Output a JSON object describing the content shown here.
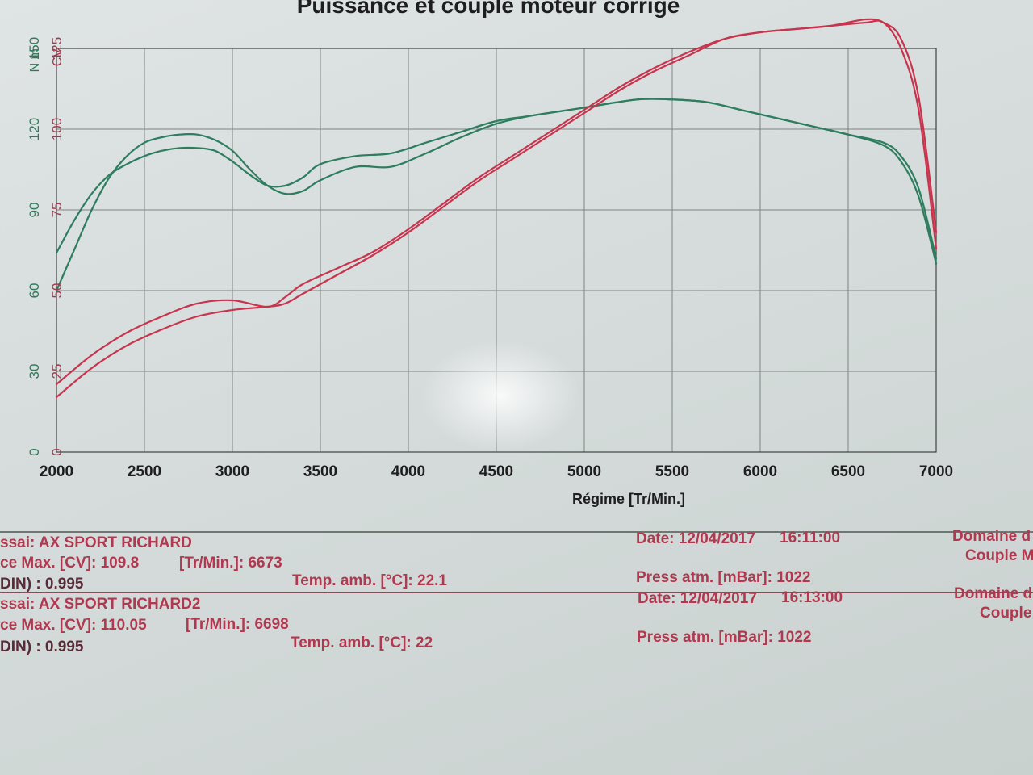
{
  "chart_data": {
    "type": "line",
    "title": "Puissance et couple moteur corrige",
    "xlabel": "Régime [Tr/Min.]",
    "x_ticks": [
      "2000",
      "2500",
      "3000",
      "3500",
      "4000",
      "4500",
      "5000",
      "5500",
      "6000",
      "6500",
      "7000"
    ],
    "xlim": [
      2000,
      7000
    ],
    "y_left_unit": "N m",
    "y_left_ticks": [
      "0",
      "30",
      "60",
      "90",
      "120",
      "150"
    ],
    "y_left_lim": [
      0,
      150
    ],
    "y_right_unit": "CV",
    "y_right_ticks": [
      "0",
      "25",
      "50",
      "75",
      "100",
      "125"
    ],
    "y_right_lim": [
      0,
      125
    ],
    "grid": true,
    "series": [
      {
        "axis": "left",
        "color": "#2e7d5e",
        "x": [
          2000,
          2100,
          2200,
          2300,
          2400,
          2500,
          2600,
          2700,
          2800,
          2900,
          3000,
          3100,
          3200,
          3300,
          3400,
          3500,
          3700,
          3900,
          4100,
          4300,
          4500,
          4700,
          5000,
          5300,
          5500,
          5700,
          5900,
          6100,
          6300,
          6500,
          6700,
          6800,
          6900,
          7000
        ],
        "values": [
          60,
          75,
          90,
          102,
          110,
          115,
          117,
          118,
          118,
          116,
          112,
          105,
          99,
          96,
          97,
          101,
          106,
          106,
          111,
          117,
          122,
          125,
          128,
          131,
          131,
          130,
          127,
          124,
          121,
          118,
          114,
          108,
          95,
          70
        ]
      },
      {
        "axis": "left",
        "color": "#2e7d5e",
        "x": [
          2000,
          2100,
          2200,
          2300,
          2400,
          2500,
          2600,
          2700,
          2800,
          2900,
          3000,
          3100,
          3200,
          3300,
          3400,
          3500,
          3700,
          3900,
          4100,
          4300,
          4500,
          4700,
          5000,
          5300,
          5500,
          5700,
          5900,
          6100,
          6300,
          6500,
          6700,
          6800,
          6900,
          7000
        ],
        "values": [
          74,
          86,
          96,
          103,
          107,
          110,
          112,
          113,
          113,
          112,
          108,
          103,
          99,
          99,
          102,
          107,
          110,
          111,
          115,
          119,
          123,
          125,
          128,
          131,
          131,
          130,
          127,
          124,
          121,
          118,
          115,
          110,
          98,
          72
        ]
      },
      {
        "axis": "right",
        "color": "#c8344e",
        "x": [
          2000,
          2200,
          2400,
          2600,
          2800,
          3000,
          3200,
          3300,
          3400,
          3600,
          3800,
          4000,
          4200,
          4400,
          4600,
          4800,
          5000,
          5200,
          5400,
          5600,
          5800,
          6000,
          6200,
          6400,
          6600,
          6700,
          6800,
          6900,
          7000
        ],
        "values": [
          17,
          26,
          33,
          38,
          42,
          44,
          45,
          46,
          49,
          55,
          61,
          68,
          76,
          84,
          91,
          98,
          105,
          112,
          118,
          123,
          128,
          130,
          131,
          132,
          134,
          133,
          128,
          110,
          68
        ]
      },
      {
        "axis": "right",
        "color": "#c8344e",
        "x": [
          2000,
          2200,
          2400,
          2600,
          2800,
          3000,
          3200,
          3300,
          3400,
          3600,
          3800,
          4000,
          4200,
          4400,
          4600,
          4800,
          5000,
          5200,
          5400,
          5600,
          5800,
          6000,
          6200,
          6400,
          6600,
          6700,
          6800,
          6900,
          7000
        ],
        "values": [
          21,
          30,
          37,
          42,
          46,
          47,
          45,
          48,
          52,
          57,
          62,
          69,
          77,
          85,
          92,
          99,
          106,
          113,
          119,
          124,
          128,
          130,
          131,
          132,
          133,
          133,
          125,
          106,
          63
        ]
      }
    ]
  },
  "info": {
    "run1": {
      "essai": "ssai: AX SPORT RICHARD",
      "puissance": "ce Max. [CV]: 109.8",
      "regime": "[Tr/Min.]: 6673",
      "din": "DIN) : 0.995",
      "temp": "Temp. amb. [°C]: 22.1",
      "date": "Date: 12/04/2017",
      "time": "16:11:00",
      "press": "Press atm. [mBar]: 1022",
      "domaine": "Domaine d",
      "couple": "Couple M"
    },
    "run2": {
      "essai": "ssai: AX SPORT RICHARD2",
      "puissance": "ce Max. [CV]: 110.05",
      "regime": "[Tr/Min.]: 6698",
      "din": "DIN) : 0.995",
      "temp": "Temp. amb. [°C]: 22",
      "date": "Date: 12/04/2017",
      "time": "16:13:00",
      "press": "Press atm. [mBar]: 1022",
      "domaine": "Domaine d",
      "couple": "Couple"
    }
  }
}
